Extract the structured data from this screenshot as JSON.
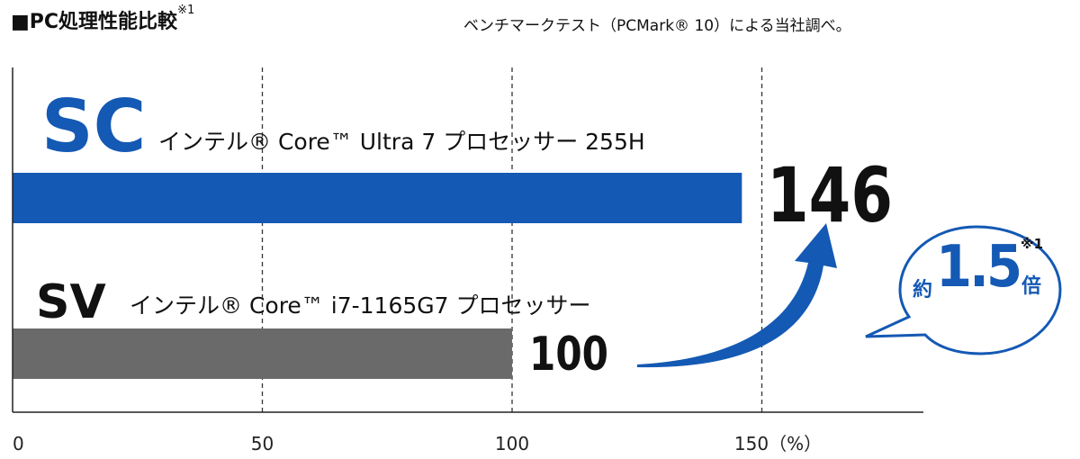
{
  "header": {
    "title": "■PC処理性能比較",
    "title_note": "※1",
    "source": "ベンチマークテスト（PCMark® 10）による当社調べ。"
  },
  "colors": {
    "sc_bar": "#1459b4",
    "sv_bar": "#6b6a6a",
    "bubble_border": "#1459b4",
    "arrow": "#1459b4",
    "axis": "#222222",
    "grid": "#333333"
  },
  "bubble": {
    "approx": "約",
    "value": "1.5",
    "note": "※1",
    "unit": "倍"
  },
  "chart_data": {
    "type": "bar",
    "orientation": "horizontal",
    "categories": [
      "SC",
      "SV"
    ],
    "category_descriptions": [
      "インテル® Core™ Ultra 7 プロセッサー 255H",
      "インテル® Core™ i7-1165G7 プロセッサー"
    ],
    "values": [
      146,
      100
    ],
    "value_labels": [
      "146",
      "100"
    ],
    "xlim": [
      0,
      180
    ],
    "xticks": [
      0,
      50,
      100,
      150
    ],
    "xtick_labels": [
      "0",
      "50",
      "100",
      "150（%）"
    ],
    "grid": "vertical dashed at 50, 100, 150"
  }
}
